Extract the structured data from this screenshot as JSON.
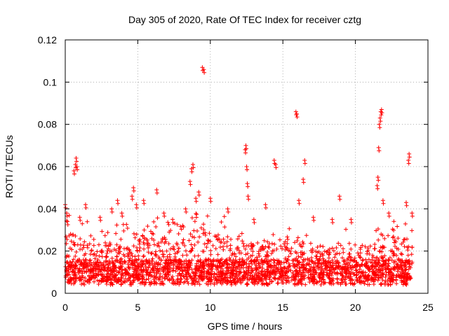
{
  "chart_data": {
    "type": "scatter",
    "title": "Day 305 of 2020, Rate Of TEC Index for receiver cztg",
    "xlabel": "GPS time / hours",
    "ylabel": "ROTI / TECUs",
    "xlim": [
      0,
      25
    ],
    "ylim": [
      0,
      0.12
    ],
    "xticks": [
      0,
      5,
      10,
      15,
      20,
      25
    ],
    "xtick_labels": [
      "0",
      "5",
      "10",
      "15",
      "20",
      "25"
    ],
    "yticks": [
      0,
      0.02,
      0.04,
      0.06,
      0.08,
      0.1,
      0.12
    ],
    "ytick_labels": [
      "0",
      "0.02",
      "0.04",
      "0.06",
      "0.08",
      "0.1",
      "0.12"
    ],
    "grid": true,
    "marker": "+",
    "color": "#ff0000",
    "series": [
      {
        "name": "ROTI",
        "baseline_profile": {
          "x": [
            0,
            1,
            2,
            3,
            4,
            5,
            6,
            7,
            8,
            9,
            10,
            11,
            12,
            13,
            14,
            15,
            16,
            17,
            18,
            19,
            20,
            21,
            22,
            23,
            24
          ],
          "upper": [
            0.032,
            0.028,
            0.024,
            0.024,
            0.026,
            0.03,
            0.03,
            0.026,
            0.026,
            0.034,
            0.03,
            0.03,
            0.026,
            0.024,
            0.024,
            0.022,
            0.024,
            0.02,
            0.022,
            0.024,
            0.02,
            0.024,
            0.028,
            0.028,
            0.026
          ]
        },
        "outliers": [
          [
            0.0,
            0.042
          ],
          [
            0.1,
            0.038
          ],
          [
            0.15,
            0.034
          ],
          [
            0.6,
            0.058
          ],
          [
            0.7,
            0.061
          ],
          [
            0.75,
            0.064
          ],
          [
            0.8,
            0.06
          ],
          [
            1.0,
            0.036
          ],
          [
            1.4,
            0.042
          ],
          [
            2.4,
            0.036
          ],
          [
            3.2,
            0.04
          ],
          [
            3.6,
            0.044
          ],
          [
            3.9,
            0.038
          ],
          [
            4.6,
            0.046
          ],
          [
            4.7,
            0.05
          ],
          [
            4.9,
            0.042
          ],
          [
            5.4,
            0.044
          ],
          [
            6.3,
            0.049
          ],
          [
            6.8,
            0.038
          ],
          [
            7.4,
            0.035
          ],
          [
            8.3,
            0.04
          ],
          [
            8.6,
            0.053
          ],
          [
            8.7,
            0.059
          ],
          [
            8.8,
            0.061
          ],
          [
            9.0,
            0.045
          ],
          [
            9.2,
            0.048
          ],
          [
            9.45,
            0.107
          ],
          [
            9.55,
            0.106
          ],
          [
            10.0,
            0.045
          ],
          [
            11.2,
            0.04
          ],
          [
            12.4,
            0.068
          ],
          [
            12.45,
            0.07
          ],
          [
            12.5,
            0.06
          ],
          [
            12.55,
            0.052
          ],
          [
            12.6,
            0.046
          ],
          [
            13.0,
            0.035
          ],
          [
            13.8,
            0.042
          ],
          [
            14.4,
            0.063
          ],
          [
            14.5,
            0.061
          ],
          [
            15.9,
            0.086
          ],
          [
            15.95,
            0.085
          ],
          [
            16.1,
            0.044
          ],
          [
            16.4,
            0.054
          ],
          [
            16.5,
            0.063
          ],
          [
            17.1,
            0.036
          ],
          [
            18.4,
            0.035
          ],
          [
            18.9,
            0.046
          ],
          [
            19.7,
            0.035
          ],
          [
            21.5,
            0.051
          ],
          [
            21.55,
            0.055
          ],
          [
            21.6,
            0.069
          ],
          [
            21.65,
            0.08
          ],
          [
            21.7,
            0.083
          ],
          [
            21.75,
            0.086
          ],
          [
            21.8,
            0.087
          ],
          [
            21.9,
            0.044
          ],
          [
            22.3,
            0.038
          ],
          [
            23.5,
            0.043
          ],
          [
            23.65,
            0.063
          ],
          [
            23.7,
            0.066
          ],
          [
            23.9,
            0.038
          ]
        ]
      }
    ]
  }
}
